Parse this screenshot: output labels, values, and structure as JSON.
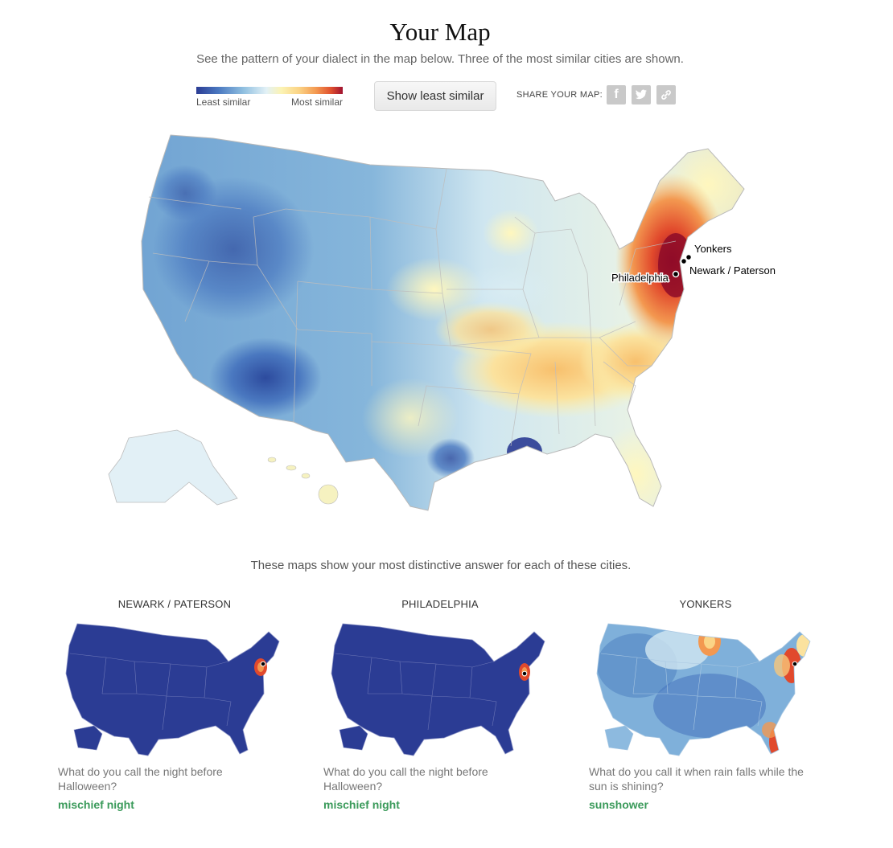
{
  "title": "Your Map",
  "subtitle": "See the pattern of your dialect in the map below. Three of the most similar cities are shown.",
  "legend": {
    "least": "Least similar",
    "most": "Most similar",
    "colors": [
      "#2b3c94",
      "#4a78c0",
      "#8fbfe0",
      "#e3f1f6",
      "#fbf3b4",
      "#fbd486",
      "#f39850",
      "#e0502f",
      "#9f1230"
    ]
  },
  "button": {
    "label": "Show least similar"
  },
  "share": {
    "label": "SHARE YOUR MAP:",
    "icons": [
      "facebook-icon",
      "twitter-icon",
      "link-icon"
    ]
  },
  "map": {
    "cities": [
      {
        "name": "Yonkers"
      },
      {
        "name": "Newark / Paterson"
      },
      {
        "name": "Philadelphia"
      }
    ]
  },
  "caption": "These maps show your most distinctive answer for each of these cities.",
  "small_maps": [
    {
      "city": "NEWARK / PATERSON",
      "question": "What do you call the night before Halloween?",
      "answer": "mischief night"
    },
    {
      "city": "PHILADELPHIA",
      "question": "What do you call the night before Halloween?",
      "answer": "mischief night"
    },
    {
      "city": "YONKERS",
      "question": "What do you call it when rain falls while the sun is shining?",
      "answer": "sunshower"
    }
  ]
}
